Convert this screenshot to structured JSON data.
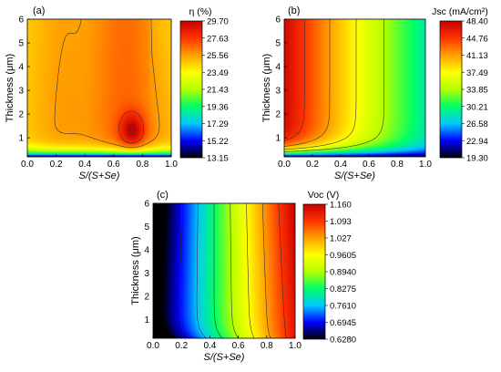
{
  "chart_data": [
    {
      "type": "heatmap",
      "panel_label": "(a)",
      "xlabel": "S/(S+Se)",
      "ylabel": "Thickness (μm)",
      "x_ticks": [
        0.0,
        0.2,
        0.4,
        0.6,
        0.8,
        1.0
      ],
      "x_tick_labels": [
        "0.0",
        "0.2",
        "0.4",
        "0.6",
        "0.8",
        "1.0"
      ],
      "y_ticks": [
        1,
        2,
        3,
        4,
        5,
        6
      ],
      "y_tick_labels": [
        "1",
        "2",
        "3",
        "4",
        "5",
        "6"
      ],
      "xlim": [
        0.0,
        1.0
      ],
      "ylim": [
        0.2,
        6.0
      ],
      "colorbar_title": "η (%)",
      "colorbar_ticks": [
        "29.70",
        "27.63",
        "25.56",
        "23.49",
        "21.43",
        "19.36",
        "17.29",
        "15.22",
        "13.15"
      ],
      "vmin": 13.15,
      "vmax": 29.7,
      "contour_levels": [
        25.56,
        27.63,
        29.7
      ],
      "peak": {
        "x": 0.74,
        "y": 1.3,
        "value": 29.7
      }
    },
    {
      "type": "heatmap",
      "panel_label": "(b)",
      "xlabel": "S/(S+Se)",
      "ylabel": "Thickness (μm)",
      "x_ticks": [
        0.0,
        0.2,
        0.4,
        0.6,
        0.8,
        1.0
      ],
      "x_tick_labels": [
        "0.0",
        "0.2",
        "0.4",
        "0.6",
        "0.8",
        "1.0"
      ],
      "y_ticks": [
        1,
        2,
        3,
        4,
        5,
        6
      ],
      "y_tick_labels": [
        "1",
        "2",
        "3",
        "4",
        "5",
        "6"
      ],
      "xlim": [
        0.0,
        1.0
      ],
      "ylim": [
        0.2,
        6.0
      ],
      "colorbar_title": "Jsc (mA/cm²)",
      "colorbar_ticks": [
        "48.40",
        "44.76",
        "41.13",
        "37.49",
        "33.85",
        "30.21",
        "26.58",
        "22.94",
        "19.30"
      ],
      "vmin": 19.3,
      "vmax": 48.4,
      "contour_levels": [
        33.85,
        37.49,
        41.13,
        44.76
      ]
    },
    {
      "type": "heatmap",
      "panel_label": "(c)",
      "xlabel": "S/(S+Se)",
      "ylabel": "Thickness (μm)",
      "x_ticks": [
        0.0,
        0.2,
        0.4,
        0.6,
        0.8,
        1.0
      ],
      "x_tick_labels": [
        "0.0",
        "0.2",
        "0.4",
        "0.6",
        "0.8",
        "1.0"
      ],
      "y_ticks": [
        1,
        2,
        3,
        4,
        5,
        6
      ],
      "y_tick_labels": [
        "1",
        "2",
        "3",
        "4",
        "5",
        "6"
      ],
      "xlim": [
        0.0,
        1.0
      ],
      "ylim": [
        0.2,
        6.0
      ],
      "colorbar_title": "Voc (V)",
      "colorbar_ticks": [
        "1.160",
        "1.093",
        "1.027",
        "0.9605",
        "0.8940",
        "0.8275",
        "0.7610",
        "0.6945",
        "0.6280"
      ],
      "vmin": 0.628,
      "vmax": 1.16,
      "contour_levels": [
        0.6945,
        0.761,
        0.8275,
        0.894,
        0.9605,
        1.027,
        1.093
      ]
    }
  ],
  "colormap": [
    "#000000",
    "#0000ff",
    "#00c8ff",
    "#00ff66",
    "#b4ff00",
    "#ffff00",
    "#ffa000",
    "#ff3300",
    "#c80000"
  ]
}
